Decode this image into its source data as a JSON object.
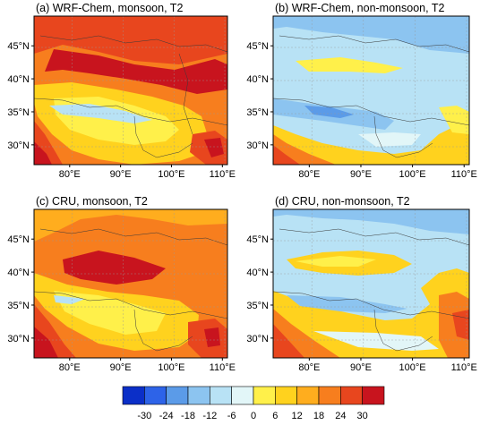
{
  "panels": [
    {
      "title": "(a) WRF-Chem, monsoon, T2",
      "scheme": "wrf_monsoon"
    },
    {
      "title": "(b) WRF-Chem, non-monsoon, T2",
      "scheme": "wrf_nonmonsoon"
    },
    {
      "title": "(c) CRU, monsoon, T2",
      "scheme": "cru_monsoon"
    },
    {
      "title": "(d) CRU, non-monsoon, T2",
      "scheme": "cru_nonmonsoon"
    }
  ],
  "axes": {
    "lon_range": [
      73,
      111
    ],
    "lat_range": [
      27,
      49.5
    ],
    "x_ticks": [
      {
        "value": 80,
        "label": "80°E"
      },
      {
        "value": 90,
        "label": "90°E"
      },
      {
        "value": 100,
        "label": "100°E"
      },
      {
        "value": 110,
        "label": "110°E"
      }
    ],
    "y_ticks": [
      {
        "value": 30,
        "label": "30°N"
      },
      {
        "value": 35,
        "label": "35°N"
      },
      {
        "value": 40,
        "label": "40°N"
      },
      {
        "value": 45,
        "label": "45°N"
      }
    ]
  },
  "colorbar": {
    "levels": [
      "-30",
      "-24",
      "-18",
      "-12",
      "-6",
      "0",
      "6",
      "12",
      "18",
      "24",
      "30"
    ],
    "colors": [
      "#0b2fc8",
      "#2d63e8",
      "#5b9be8",
      "#8cc4f0",
      "#b8e2f5",
      "#e2f6f8",
      "#fff04a",
      "#ffd21e",
      "#ffad1e",
      "#f77e1e",
      "#e8461e",
      "#c8141e"
    ]
  }
}
